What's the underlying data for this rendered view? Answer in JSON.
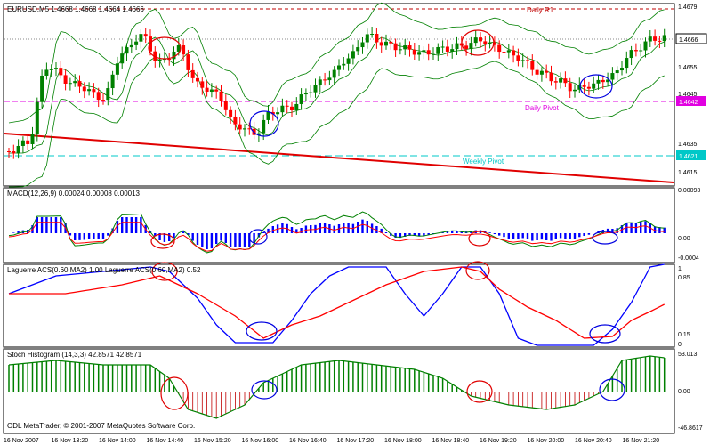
{
  "colors": {
    "bull": "#008000",
    "bear": "#ff0000",
    "band": "#008000",
    "frame": "#000000",
    "grid": "#000000",
    "pivot_daily": "#e100e1",
    "pivot_weekly": "#00c8c8",
    "r1": "#c00000",
    "macd_hist": "#0000ff",
    "macd_signal": "#ff0000",
    "macd_line": "#008000",
    "lag_red": "#ff0000",
    "lag_blue": "#0000ff",
    "stoch_up": "#008000",
    "stoch_down": "#c00000",
    "circle_red": "#e00000",
    "circle_blue": "#0000e0"
  },
  "main": {
    "title": "EURUSD,M5  1.4668 1.4668 1.4664 1.4666",
    "daily_r1_label": "Daily R1",
    "daily_pivot_label": "Daily Pivot",
    "weekly_pivot_label": "Weekly Pivot",
    "price_scale": [
      "1.4679",
      "1.4666",
      "1.4655",
      "1.4645",
      "1.4642",
      "1.4635",
      "1.4625",
      "1.4621",
      "1.4615"
    ],
    "current_price": "1.4666",
    "pivot_price": "1.4642",
    "weekly_price": "1.4621"
  },
  "macd": {
    "title": "MACD(12,26,9) 0.00024 0.00008 0.00013",
    "scale": [
      "0.00093",
      "0.00",
      "-0.0004"
    ]
  },
  "laguerre": {
    "title": "Laguerre ACS(0.60,MA2) 1.00   Laguerre ACS(0.60,MA2) 0.52",
    "scale": [
      "1",
      "0.85",
      "0.15",
      "0"
    ]
  },
  "stoch": {
    "title": "Stoch Histogram (14,3,3) 42.8571 42.8571",
    "scale": [
      "53.013",
      "0.00",
      "-46.8617"
    ]
  },
  "copyright": "ODL MetaTrader, © 2001-2007 MetaQuotes Software Corp.",
  "time_axis": [
    "16 Nov 2007",
    "16 Nov 13:20",
    "16 Nov 14:00",
    "16 Nov 14:40",
    "16 Nov 15:20",
    "16 Nov 16:00",
    "16 Nov 16:40",
    "16 Nov 17:20",
    "16 Nov 18:00",
    "16 Nov 18:40",
    "16 Nov 19:20",
    "16 Nov 20:00",
    "16 Nov 20:40",
    "16 Nov 21:20"
  ]
}
